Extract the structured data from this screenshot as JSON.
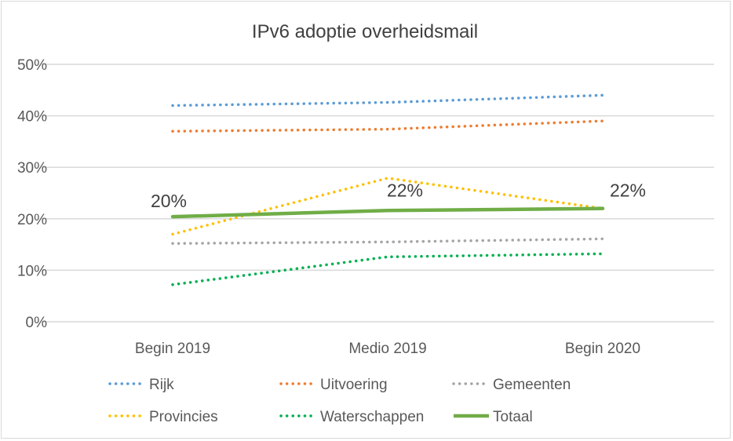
{
  "chart_data": {
    "type": "line",
    "title": "IPv6 adoptie overheidsmail",
    "categories": [
      "Begin 2019",
      "Medio 2019",
      "Begin 2020"
    ],
    "ylim": [
      0,
      50
    ],
    "yticks": [
      "0%",
      "10%",
      "20%",
      "30%",
      "40%",
      "50%"
    ],
    "grid": true,
    "legend_position": "bottom",
    "series": [
      {
        "name": "Rijk",
        "values": [
          42,
          42.6,
          44
        ],
        "color": "#5b9bd5",
        "style": "dotted"
      },
      {
        "name": "Uitvoering",
        "values": [
          37,
          37.4,
          39
        ],
        "color": "#ed7d31",
        "style": "dotted"
      },
      {
        "name": "Gemeenten",
        "values": [
          15.2,
          15.5,
          16.1
        ],
        "color": "#a5a5a5",
        "style": "dotted"
      },
      {
        "name": "Provincies",
        "values": [
          17,
          27.9,
          22
        ],
        "color": "#ffc000",
        "style": "dotted"
      },
      {
        "name": "Waterschappen",
        "values": [
          7.2,
          12.6,
          13.2
        ],
        "color": "#00b050",
        "style": "dotted"
      },
      {
        "name": "Totaal",
        "values": [
          20.4,
          21.6,
          22
        ],
        "color": "#70ad47",
        "style": "solid"
      }
    ],
    "data_labels": {
      "series": "Totaal",
      "labels": [
        "20%",
        "22%",
        "22%"
      ]
    }
  }
}
